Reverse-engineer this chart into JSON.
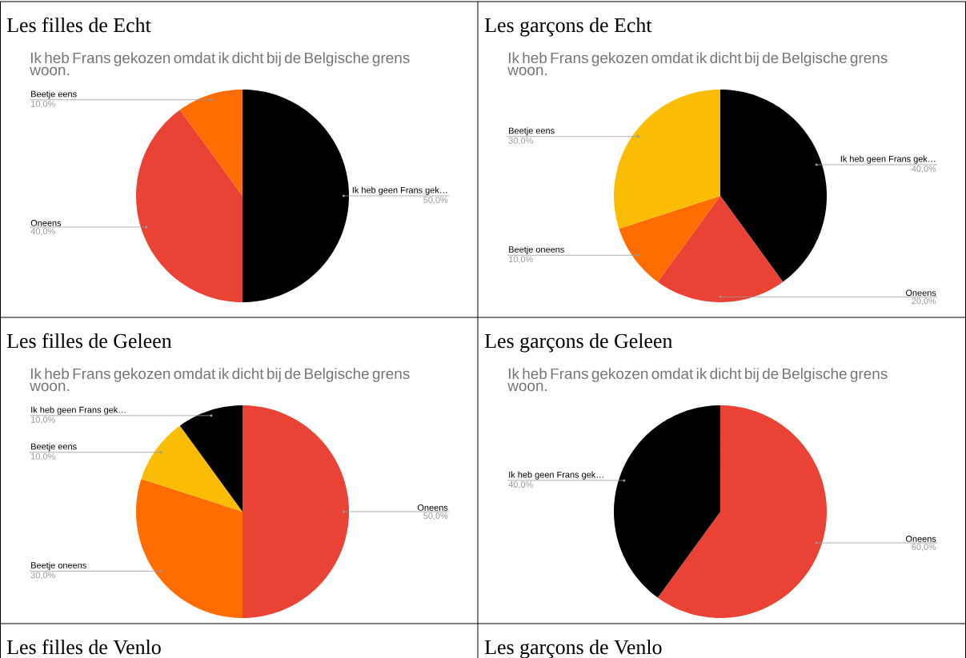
{
  "chart_data": [
    {
      "type": "pie",
      "title": "Les filles de Echt",
      "subtitle": "Ik heb Frans gekozen omdat ik dicht bij de Belgische grens woon.",
      "categories": [
        "Ik heb geen Frans gek…",
        "Oneens",
        "Beetje eens"
      ],
      "values": [
        50,
        40,
        10
      ],
      "colors": [
        "#000000",
        "#ea4335",
        "#ff6d01"
      ],
      "value_labels": [
        "50,0%",
        "40,0%",
        "10,0%"
      ]
    },
    {
      "type": "pie",
      "title": "Les garçons de Echt",
      "subtitle": "Ik heb Frans gekozen omdat ik dicht bij de Belgische grens woon.",
      "categories": [
        "Ik heb geen Frans gek…",
        "Oneens",
        "Beetje oneens",
        "Beetje eens"
      ],
      "values": [
        40,
        20,
        10,
        30
      ],
      "colors": [
        "#000000",
        "#ea4335",
        "#ff6d01",
        "#fbbc04"
      ],
      "value_labels": [
        "40,0%",
        "20,0%",
        "10,0%",
        "30,0%"
      ]
    },
    {
      "type": "pie",
      "title": "Les filles de Geleen",
      "subtitle": "Ik heb Frans gekozen omdat ik dicht bij de Belgische grens woon.",
      "categories": [
        "Oneens",
        "Beetje oneens",
        "Beetje eens",
        "Ik heb geen Frans gek…"
      ],
      "values": [
        50,
        30,
        10,
        10
      ],
      "colors": [
        "#ea4335",
        "#ff6d01",
        "#fbbc04",
        "#000000"
      ],
      "value_labels": [
        "50,0%",
        "30,0%",
        "10,0%",
        "10,0%"
      ]
    },
    {
      "type": "pie",
      "title": "Les garçons de Geleen",
      "subtitle": "Ik heb Frans gekozen omdat ik dicht bij de Belgische grens woon.",
      "categories": [
        "Oneens",
        "Ik heb geen Frans gek…"
      ],
      "values": [
        60,
        40
      ],
      "colors": [
        "#ea4335",
        "#000000"
      ],
      "value_labels": [
        "60,0%",
        "40,0%"
      ]
    },
    {
      "type": "other",
      "title": "Les filles de Venlo"
    },
    {
      "type": "other",
      "title": "Les garçons de Venlo"
    }
  ]
}
